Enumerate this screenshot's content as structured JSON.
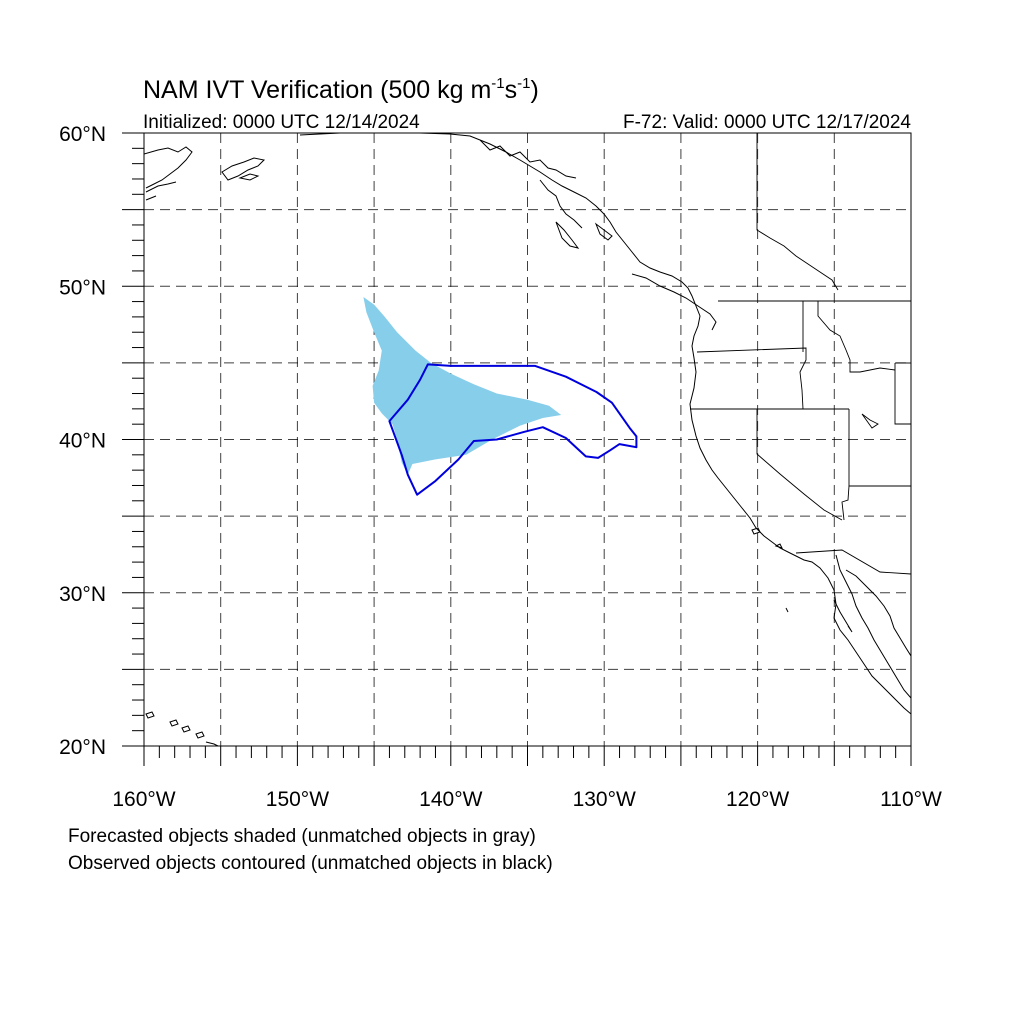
{
  "title": {
    "main": "NAM IVT Verification (500 kg m",
    "exp1": "-1",
    "mid": "s",
    "exp2": "-1",
    "close": ")"
  },
  "subtitle_left": "Initialized: 0000 UTC 12/14/2024",
  "subtitle_right": "F-72: Valid: 0000 UTC 12/17/2024",
  "lat_labels": [
    {
      "text": "60°N",
      "lat": 60
    },
    {
      "text": "50°N",
      "lat": 50
    },
    {
      "text": "40°N",
      "lat": 40
    },
    {
      "text": "30°N",
      "lat": 30
    },
    {
      "text": "20°N",
      "lat": 20
    }
  ],
  "lon_labels": [
    {
      "text": "160°W",
      "lon": -160
    },
    {
      "text": "150°W",
      "lon": -150
    },
    {
      "text": "140°W",
      "lon": -140
    },
    {
      "text": "130°W",
      "lon": -130
    },
    {
      "text": "120°W",
      "lon": -120
    },
    {
      "text": "110°W",
      "lon": -110
    }
  ],
  "notes": [
    "Forecasted objects shaded (unmatched objects in gray)",
    "Observed objects contoured (unmatched objects in black)"
  ],
  "map": {
    "lon_range": [
      -160,
      -110
    ],
    "lat_range": [
      20,
      60
    ],
    "grid_spacing_deg": 5,
    "grid_style": "dashed"
  },
  "colors": {
    "forecast_fill": "#87ceeb",
    "observed_contour": "#0000dd",
    "coastline": "#000000"
  },
  "forecast_object": {
    "label": "forecast (shaded)",
    "polygon": [
      [
        -145.7,
        49.3
      ],
      [
        -145.0,
        48.8
      ],
      [
        -144.3,
        48.0
      ],
      [
        -143.5,
        47.0
      ],
      [
        -142.3,
        45.8
      ],
      [
        -141.3,
        45.0
      ],
      [
        -140.0,
        44.3
      ],
      [
        -138.5,
        43.6
      ],
      [
        -137.0,
        43.0
      ],
      [
        -135.0,
        42.6
      ],
      [
        -133.6,
        42.2
      ],
      [
        -132.8,
        41.6
      ],
      [
        -134.0,
        41.4
      ],
      [
        -135.5,
        40.9
      ],
      [
        -137.3,
        40.0
      ],
      [
        -139.0,
        39.0
      ],
      [
        -141.0,
        38.7
      ],
      [
        -142.5,
        38.4
      ],
      [
        -142.8,
        37.7
      ],
      [
        -143.2,
        38.5
      ],
      [
        -143.5,
        40.0
      ],
      [
        -143.8,
        41.0
      ],
      [
        -144.5,
        41.7
      ],
      [
        -145.0,
        42.4
      ],
      [
        -145.1,
        43.5
      ],
      [
        -144.7,
        44.5
      ],
      [
        -144.5,
        45.8
      ],
      [
        -145.0,
        47.0
      ],
      [
        -145.5,
        48.3
      ]
    ]
  },
  "observed_object": {
    "label": "observed (contoured)",
    "polygon": [
      [
        -141.5,
        44.9
      ],
      [
        -140.0,
        44.8
      ],
      [
        -138.0,
        44.8
      ],
      [
        -136.0,
        44.8
      ],
      [
        -134.5,
        44.8
      ],
      [
        -132.5,
        44.1
      ],
      [
        -130.5,
        43.1
      ],
      [
        -129.5,
        42.4
      ],
      [
        -128.3,
        40.7
      ],
      [
        -127.9,
        40.2
      ],
      [
        -127.9,
        39.5
      ],
      [
        -129.0,
        39.7
      ],
      [
        -129.6,
        39.3
      ],
      [
        -130.4,
        38.8
      ],
      [
        -131.2,
        38.9
      ],
      [
        -132.5,
        40.1
      ],
      [
        -134.0,
        40.8
      ],
      [
        -135.2,
        40.5
      ],
      [
        -137.0,
        40.0
      ],
      [
        -138.5,
        39.9
      ],
      [
        -139.5,
        38.7
      ],
      [
        -141.0,
        37.3
      ],
      [
        -142.2,
        36.4
      ],
      [
        -142.8,
        37.7
      ],
      [
        -143.2,
        39.0
      ],
      [
        -144.0,
        41.2
      ],
      [
        -142.8,
        42.6
      ],
      [
        -142.0,
        43.9
      ]
    ]
  }
}
